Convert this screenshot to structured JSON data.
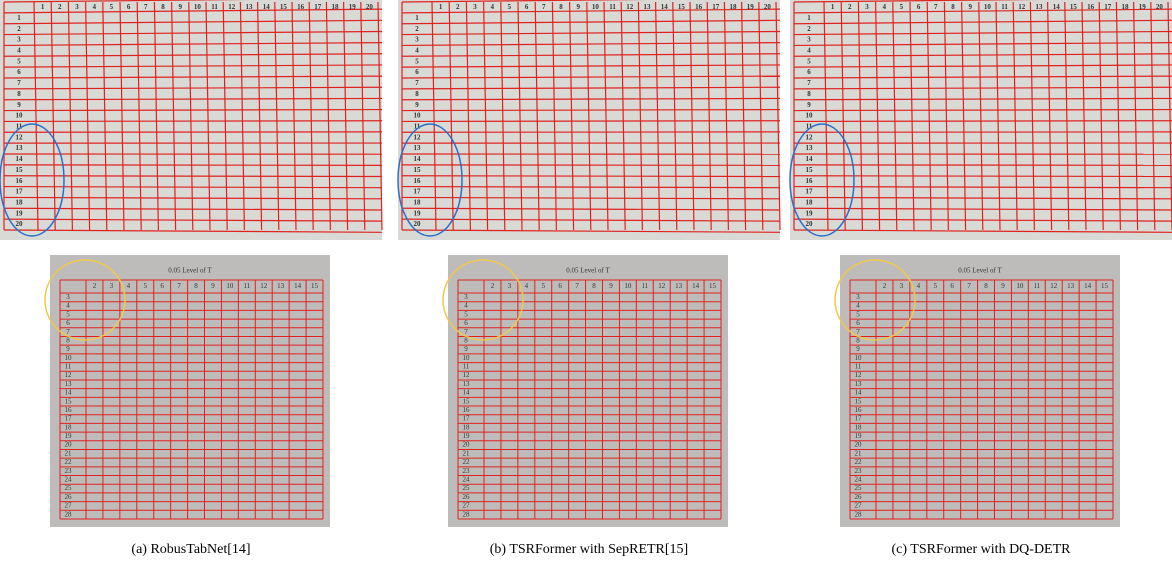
{
  "figure": {
    "top_table": {
      "column_headers": [
        1,
        2,
        3,
        4,
        5,
        6,
        7,
        8,
        9,
        10,
        11,
        12,
        13,
        14,
        15,
        16,
        17,
        18,
        19,
        20
      ],
      "row_headers": [
        1,
        2,
        3,
        4,
        5,
        6,
        7,
        8,
        9,
        10,
        11,
        12,
        13,
        14,
        15,
        16,
        17,
        18,
        19,
        20
      ]
    },
    "bottom_table": {
      "title": "0.05 Level of T",
      "column_headers": [
        2,
        3,
        4,
        5,
        6,
        7,
        8,
        9,
        10,
        11,
        12,
        13,
        14,
        15
      ],
      "row_headers": [
        3,
        4,
        5,
        6,
        7,
        8,
        9,
        10,
        11,
        12,
        13,
        14,
        15,
        16,
        17,
        18,
        19,
        20,
        21,
        22,
        23,
        24,
        25,
        26,
        27,
        28
      ]
    },
    "captions": [
      "(a) RobusTabNet[14]",
      "(b) TSRFormer with SepRETR[15]",
      "(c) TSRFormer with DQ-DETR"
    ]
  }
}
